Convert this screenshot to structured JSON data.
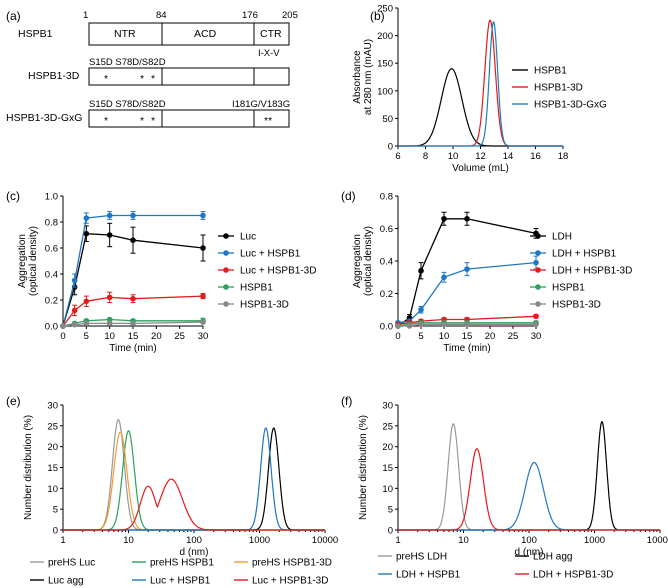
{
  "figure_title": "HSPB1 construct schematic, SEC, aggregation and DLS panels",
  "panel_a": {
    "label": "(a)",
    "positions": [
      "1",
      "84",
      "176",
      "205"
    ],
    "domains": [
      "NTR",
      "ACD",
      "CTR"
    ],
    "motif": "I-X-V",
    "constructs": [
      {
        "name": "HSPB1",
        "note_left": "",
        "note_right": ""
      },
      {
        "name": "HSPB1-3D",
        "note_left": "S15D  S78D/S82D",
        "note_right": ""
      },
      {
        "name": "HSPB1-3D-GxG",
        "note_left": "S15D  S78D/S82D",
        "note_right": "I181G/V183G"
      }
    ]
  },
  "chart_data": [
    {
      "panel": "(b)",
      "type": "line",
      "xlabel": "Volume (mL)",
      "ylabel": "Absorbance at 280 nm (mAU)",
      "ylabel_lines": [
        "Absorbance",
        "at 280 nm (mAU)"
      ],
      "xlim": [
        6,
        18
      ],
      "ylim": [
        0,
        250
      ],
      "xticks": [
        "6",
        "8",
        "10",
        "12",
        "14",
        "16",
        "18"
      ],
      "yticks": [
        "0",
        "50",
        "100",
        "150",
        "200",
        "250"
      ],
      "series": [
        {
          "name": "HSPB1",
          "color": "#000000",
          "peak": [
            9.9,
            140
          ],
          "width": 0.75
        },
        {
          "name": "HSPB1-3D",
          "color": "#e41a1c",
          "peak": [
            12.7,
            228
          ],
          "width": 0.38
        },
        {
          "name": "HSPB1-3D-GxG",
          "color": "#1a7fc1",
          "peak": [
            12.95,
            225
          ],
          "width": 0.3
        }
      ]
    },
    {
      "panel": "(c)",
      "type": "line",
      "xlabel": "Time (min)",
      "ylabel": "Aggregation (optical density)",
      "ylabel_lines": [
        "Aggregation",
        "(optical density)"
      ],
      "xlim": [
        0,
        30
      ],
      "ylim": [
        0,
        1.0
      ],
      "xticks": [
        "0",
        "5",
        "10",
        "15",
        "20",
        "25",
        "30"
      ],
      "yticks": [
        "0.0",
        "0.2",
        "0.4",
        "0.6",
        "0.8",
        "1.0"
      ],
      "x": [
        0,
        2.5,
        5,
        10,
        15,
        30
      ],
      "series": [
        {
          "name": "Luc",
          "color": "#000000",
          "values": [
            0.0,
            0.3,
            0.71,
            0.7,
            0.66,
            0.6
          ],
          "errors": [
            0.0,
            0.06,
            0.06,
            0.09,
            0.1,
            0.1
          ]
        },
        {
          "name": "Luc + HSPB1",
          "color": "#1f77c4",
          "values": [
            0.0,
            0.35,
            0.83,
            0.85,
            0.85,
            0.85
          ],
          "errors": [
            0.0,
            0.05,
            0.04,
            0.03,
            0.03,
            0.03
          ]
        },
        {
          "name": "Luc + HSPB1-3D",
          "color": "#e41a1c",
          "values": [
            0.0,
            0.12,
            0.19,
            0.22,
            0.21,
            0.23
          ],
          "errors": [
            0.0,
            0.04,
            0.04,
            0.04,
            0.03,
            0.02
          ]
        },
        {
          "name": "HSPB1",
          "color": "#2ca25f",
          "values": [
            0.0,
            0.02,
            0.04,
            0.05,
            0.04,
            0.04
          ],
          "errors": [
            0.0,
            0.01,
            0.01,
            0.01,
            0.01,
            0.02
          ]
        },
        {
          "name": "HSPB1-3D",
          "color": "#888888",
          "values": [
            0.0,
            0.01,
            0.02,
            0.02,
            0.02,
            0.03
          ],
          "errors": [
            0.0,
            0.01,
            0.01,
            0.01,
            0.01,
            0.01
          ]
        }
      ]
    },
    {
      "panel": "(d)",
      "type": "line",
      "xlabel": "Time (min)",
      "ylabel": "Aggregation (optical density)",
      "ylabel_lines": [
        "Aggregation",
        "(optical density)"
      ],
      "xlim": [
        0,
        30
      ],
      "ylim": [
        0,
        0.8
      ],
      "xticks": [
        "0",
        "5",
        "10",
        "15",
        "20",
        "25",
        "30"
      ],
      "yticks": [
        "0.0",
        "0.2",
        "0.4",
        "0.6",
        "0.8"
      ],
      "x": [
        0,
        2.5,
        5,
        10,
        15,
        30
      ],
      "series": [
        {
          "name": "LDH",
          "color": "#000000",
          "values": [
            0.0,
            0.05,
            0.34,
            0.66,
            0.66,
            0.57
          ],
          "errors": [
            0.0,
            0.02,
            0.05,
            0.04,
            0.04,
            0.03
          ]
        },
        {
          "name": "LDH + HSPB1",
          "color": "#1f77c4",
          "values": [
            0.02,
            0.03,
            0.1,
            0.3,
            0.35,
            0.39
          ],
          "errors": [
            0.01,
            0.01,
            0.02,
            0.03,
            0.04,
            0.04
          ]
        },
        {
          "name": "LDH + HSPB1-3D",
          "color": "#e41a1c",
          "values": [
            0.01,
            0.02,
            0.03,
            0.04,
            0.04,
            0.06
          ],
          "errors": [
            0.0,
            0.01,
            0.01,
            0.01,
            0.01,
            0.01
          ]
        },
        {
          "name": "HSPB1",
          "color": "#2ca25f",
          "values": [
            0.0,
            0.01,
            0.02,
            0.02,
            0.02,
            0.02
          ],
          "errors": [
            0.0,
            0.01,
            0.01,
            0.01,
            0.01,
            0.01
          ]
        },
        {
          "name": "HSPB1-3D",
          "color": "#888888",
          "values": [
            0.0,
            0.0,
            0.01,
            0.01,
            0.01,
            0.01
          ],
          "errors": [
            0.0,
            0.0,
            0.0,
            0.0,
            0.0,
            0.0
          ]
        }
      ]
    },
    {
      "panel": "(e)",
      "type": "line",
      "xlabel": "d (nm)",
      "ylabel": "Number distribution (%)",
      "xscale": "log",
      "xlim": [
        1,
        10000
      ],
      "ylim": [
        0,
        30
      ],
      "xticks": [
        "1",
        "10",
        "100",
        "1000",
        "10000"
      ],
      "yticks": [
        "0",
        "5",
        "10",
        "15",
        "20",
        "25",
        "30"
      ],
      "legend": [
        "preHS Luc",
        "preHS HSPB1",
        "preHS HSPB1-3D",
        "Luc agg",
        "Luc + HSPB1",
        "Luc + HSPB1-3D"
      ],
      "series": [
        {
          "name": "preHS Luc",
          "color": "#999999",
          "peaks": [
            [
              7.0,
              26.5,
              0.09
            ]
          ]
        },
        {
          "name": "preHS HSPB1",
          "color": "#2ca25f",
          "peaks": [
            [
              10.0,
              23.8,
              0.09
            ]
          ]
        },
        {
          "name": "preHS HSPB1-3D",
          "color": "#f39c34",
          "peaks": [
            [
              7.5,
              23.5,
              0.1
            ]
          ]
        },
        {
          "name": "Luc agg",
          "color": "#000000",
          "peaks": [
            [
              1650,
              24.5,
              0.08
            ]
          ]
        },
        {
          "name": "Luc + HSPB1",
          "color": "#1f77c4",
          "peaks": [
            [
              1250,
              24.5,
              0.08
            ]
          ]
        },
        {
          "name": "Luc + HSPB1-3D",
          "color": "#e41a1c",
          "peaks": [
            [
              20,
              10.5,
              0.12
            ],
            [
              45,
              12.2,
              0.17
            ]
          ]
        }
      ]
    },
    {
      "panel": "(f)",
      "type": "line",
      "xlabel": "d (nm)",
      "ylabel": "Number distribution (%)",
      "xscale": "log",
      "xlim": [
        1,
        10000
      ],
      "ylim": [
        0,
        30
      ],
      "xticks": [
        "1",
        "10",
        "100",
        "1000",
        "10000"
      ],
      "yticks": [
        "0",
        "5",
        "10",
        "15",
        "20",
        "25",
        "30"
      ],
      "legend": [
        "preHS LDH",
        "LDH agg",
        "LDH + HSPB1",
        "LDH + HSPB1-3D"
      ],
      "series": [
        {
          "name": "preHS LDH",
          "color": "#999999",
          "peaks": [
            [
              7.0,
              25.5,
              0.08
            ]
          ]
        },
        {
          "name": "LDH agg",
          "color": "#000000",
          "peaks": [
            [
              1300,
              26.0,
              0.07
            ]
          ]
        },
        {
          "name": "LDH + HSPB1",
          "color": "#1f77c4",
          "peaks": [
            [
              120,
              16.2,
              0.14
            ]
          ]
        },
        {
          "name": "LDH + HSPB1-3D",
          "color": "#e41a1c",
          "peaks": [
            [
              16,
              19.5,
              0.1
            ]
          ]
        }
      ]
    }
  ]
}
